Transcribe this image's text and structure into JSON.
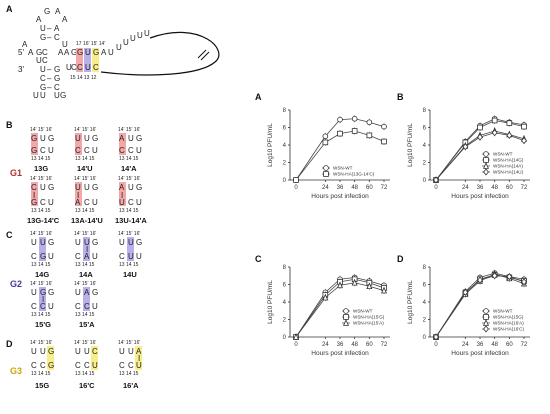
{
  "left": {
    "panel_a": "A",
    "panel_b": "B",
    "panel_c": "C",
    "panel_d": "D",
    "g1": "G1",
    "g2": "G2",
    "g3": "G3",
    "prime5": "5'",
    "prime3": "3'",
    "b_top": [
      "13G",
      "14'U",
      "14'A"
    ],
    "b_bot": [
      "13G-14'C",
      "13A-14'U",
      "13U-14'A"
    ],
    "c_top": [
      "14G",
      "14A",
      "14U"
    ],
    "c_bot": [
      "15'G",
      "15'A"
    ],
    "d_row": [
      "15G",
      "16'C",
      "16'A"
    ],
    "pos_top": "14' 15' 16'",
    "pos_bot": "13  14  15"
  },
  "chart_data": [
    {
      "type": "line",
      "panel": "A",
      "x": [
        0,
        24,
        36,
        48,
        60,
        72
      ],
      "xlabel": "Hours post infection",
      "ylabel": "Log10 PFU/mL",
      "ylim": [
        0,
        8
      ],
      "series": [
        {
          "name": "WSN-WT",
          "marker": "circle",
          "values": [
            0,
            5.0,
            6.9,
            7.0,
            6.6,
            6.1
          ]
        },
        {
          "name": "WSN-HA(13G-14'C)",
          "marker": "square",
          "values": [
            0,
            4.3,
            5.3,
            5.6,
            5.1,
            4.4
          ]
        }
      ]
    },
    {
      "type": "line",
      "panel": "B",
      "x": [
        0,
        24,
        36,
        48,
        60,
        72
      ],
      "xlabel": "Hours post infection",
      "ylabel": "Log10 PFU/mL",
      "ylim": [
        0,
        8
      ],
      "series": [
        {
          "name": "WSN-WT",
          "marker": "circle",
          "values": [
            0,
            4.4,
            6.2,
            7.0,
            6.6,
            6.3
          ]
        },
        {
          "name": "WSN-HA(14G)",
          "marker": "square",
          "values": [
            0,
            4.3,
            6.0,
            6.8,
            6.5,
            6.1
          ]
        },
        {
          "name": "WSN-HA(14A)",
          "marker": "triangle",
          "values": [
            0,
            3.9,
            5.1,
            5.6,
            5.2,
            4.7
          ]
        },
        {
          "name": "WSN-HA(14U)",
          "marker": "diamond",
          "values": [
            0,
            3.8,
            4.9,
            5.4,
            5.1,
            4.5
          ]
        }
      ]
    },
    {
      "type": "line",
      "panel": "C",
      "x": [
        0,
        24,
        36,
        48,
        60,
        72
      ],
      "xlabel": "Hours post infection",
      "ylabel": "Log10 PFU/mL",
      "ylim": [
        0,
        8
      ],
      "series": [
        {
          "name": "WSN-WT",
          "marker": "circle",
          "values": [
            0,
            5.1,
            6.6,
            6.8,
            6.4,
            5.9
          ]
        },
        {
          "name": "WSN-HA(15'G)",
          "marker": "square",
          "values": [
            0,
            4.8,
            6.3,
            6.6,
            6.2,
            5.6
          ]
        },
        {
          "name": "WSN-HA(15'A)",
          "marker": "triangle",
          "values": [
            0,
            4.5,
            5.9,
            6.2,
            5.8,
            5.3
          ]
        }
      ]
    },
    {
      "type": "line",
      "panel": "D",
      "x": [
        0,
        24,
        36,
        48,
        60,
        72
      ],
      "xlabel": "Hours post infection",
      "ylabel": "Log10 PFU/mL",
      "ylim": [
        0,
        8
      ],
      "series": [
        {
          "name": "WSN-WT",
          "marker": "circle",
          "values": [
            0,
            5.2,
            6.8,
            7.3,
            6.9,
            6.6
          ]
        },
        {
          "name": "WSN-HA(15G)",
          "marker": "square",
          "values": [
            0,
            5.0,
            6.6,
            7.1,
            6.8,
            6.4
          ]
        },
        {
          "name": "WSN-HA(16'A)",
          "marker": "triangle",
          "values": [
            0,
            4.9,
            6.4,
            7.2,
            6.7,
            6.1
          ]
        },
        {
          "name": "WSN-HA(16'C)",
          "marker": "diamond",
          "values": [
            0,
            5.1,
            6.5,
            7.0,
            6.9,
            6.3
          ]
        }
      ]
    }
  ]
}
